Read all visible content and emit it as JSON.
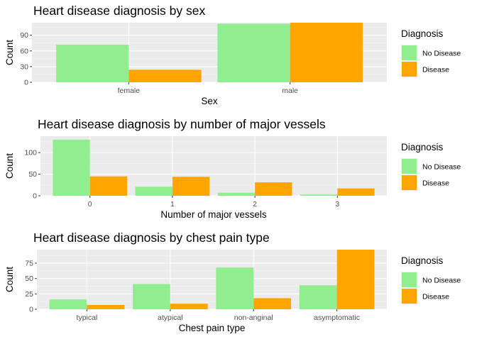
{
  "legend_defaults": {},
  "chart_data": [
    {
      "type": "bar",
      "title": "Heart disease diagnosis by sex",
      "xlabel": "Sex",
      "ylabel": "Count",
      "categories": [
        "female",
        "male"
      ],
      "series": [
        {
          "name": "No Disease",
          "values": [
            72,
            112
          ]
        },
        {
          "name": "Disease",
          "values": [
            24,
            114
          ]
        }
      ],
      "ylim": [
        0,
        114
      ],
      "yticks": [
        0,
        30,
        60,
        90
      ],
      "grid": true,
      "legend": {
        "title": "Diagnosis",
        "position": "right"
      },
      "colors": {
        "No Disease": "#90EE90",
        "Disease": "#FFA500"
      }
    },
    {
      "type": "bar",
      "title": "Heart disease diagnosis by number of major vessels",
      "xlabel": "Number of major vessels",
      "ylabel": "Count",
      "categories": [
        "0",
        "1",
        "2",
        "3"
      ],
      "series": [
        {
          "name": "No Disease",
          "values": [
            130,
            21,
            7,
            3
          ]
        },
        {
          "name": "Disease",
          "values": [
            45,
            44,
            31,
            17
          ]
        }
      ],
      "ylim": [
        0,
        138
      ],
      "yticks": [
        0,
        50,
        100
      ],
      "grid": true,
      "legend": {
        "title": "Diagnosis",
        "position": "right"
      },
      "colors": {
        "No Disease": "#90EE90",
        "Disease": "#FFA500"
      }
    },
    {
      "type": "bar",
      "title": "Heart disease diagnosis by chest pain type",
      "xlabel": "Chest pain type",
      "ylabel": "Count",
      "categories": [
        "typical",
        "atypical",
        "non-anginal",
        "asymptomatic"
      ],
      "series": [
        {
          "name": "No Disease",
          "values": [
            16,
            41,
            68,
            39
          ]
        },
        {
          "name": "Disease",
          "values": [
            7,
            9,
            18,
            105
          ]
        }
      ],
      "ylim": [
        0,
        97
      ],
      "yticks": [
        0,
        25,
        50,
        75
      ],
      "grid": true,
      "legend": {
        "title": "Diagnosis",
        "position": "right"
      },
      "colors": {
        "No Disease": "#90EE90",
        "Disease": "#FFA500"
      }
    }
  ]
}
